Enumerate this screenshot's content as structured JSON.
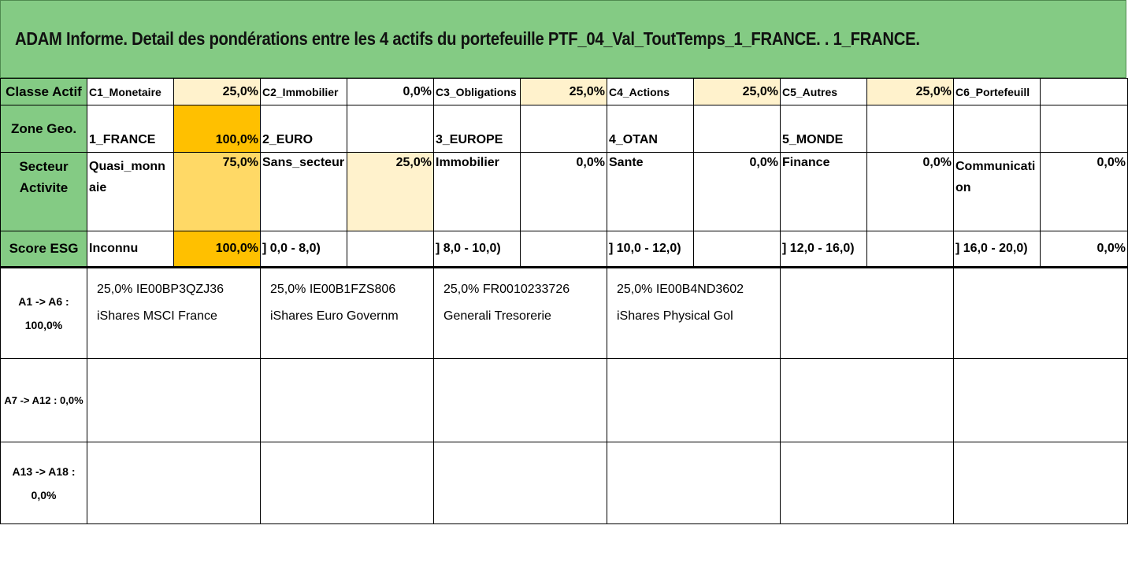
{
  "title": "ADAM Informe. Detail des pondérations entre les 4 actifs du portefeuille PTF_04_Val_ToutTemps_1_FRANCE. . 1_FRANCE.",
  "rows": {
    "classe": {
      "header": "Classe Actif",
      "cells": [
        {
          "label": "C1_Monetaire",
          "value": "25,0%"
        },
        {
          "label": "C2_Immobilier",
          "value": "0,0%"
        },
        {
          "label": "C3_Obligations",
          "value": "25,0%"
        },
        {
          "label": "C4_Actions",
          "value": "25,0%"
        },
        {
          "label": "C5_Autres",
          "value": "25,0%"
        },
        {
          "label": "C6_Portefeuill",
          "value": ""
        }
      ]
    },
    "zone": {
      "header": "Zone Geo.",
      "cells": [
        {
          "label": "1_FRANCE",
          "value": "100,0%"
        },
        {
          "label": "2_EURO",
          "value": ""
        },
        {
          "label": "3_EUROPE",
          "value": ""
        },
        {
          "label": "4_OTAN",
          "value": ""
        },
        {
          "label": "5_MONDE",
          "value": ""
        },
        {
          "label": "",
          "value": ""
        }
      ]
    },
    "secteur": {
      "header": "Secteur Activite",
      "cells": [
        {
          "label": "Quasi_monnaie",
          "value": "75,0%"
        },
        {
          "label": "Sans_secteur",
          "value": "25,0%"
        },
        {
          "label": "Immobilier",
          "value": "0,0%"
        },
        {
          "label": "Sante",
          "value": "0,0%"
        },
        {
          "label": "Finance",
          "value": "0,0%"
        },
        {
          "label": "Communication",
          "value": "0,0%"
        }
      ]
    },
    "esg": {
      "header": "Score ESG",
      "cells": [
        {
          "label": "Inconnu",
          "value": "100,0%"
        },
        {
          "label": "] 0,0 - 8,0)",
          "value": ""
        },
        {
          "label": "] 8,0 - 10,0)",
          "value": ""
        },
        {
          "label": "] 10,0 - 12,0)",
          "value": ""
        },
        {
          "label": "] 12,0 - 16,0)",
          "value": ""
        },
        {
          "label": "] 16,0 - 20,0)",
          "value": "0,0%"
        }
      ]
    }
  },
  "assets": {
    "group1": {
      "label": "A1 -> A6 : 100,0%",
      "items": [
        {
          "line1": "25,0% IE00BP3QZJ36",
          "line2": "iShares MSCI France"
        },
        {
          "line1": "25,0% IE00B1FZS806",
          "line2": "iShares Euro Governm"
        },
        {
          "line1": "25,0% FR0010233726",
          "line2": "Generali Tresorerie"
        },
        {
          "line1": "25,0% IE00B4ND3602",
          "line2": "iShares Physical Gol"
        }
      ]
    },
    "group2": {
      "label": "A7 -> A12 : 0,0%"
    },
    "group3": {
      "label": "A13 -> A18 : 0,0%"
    }
  }
}
